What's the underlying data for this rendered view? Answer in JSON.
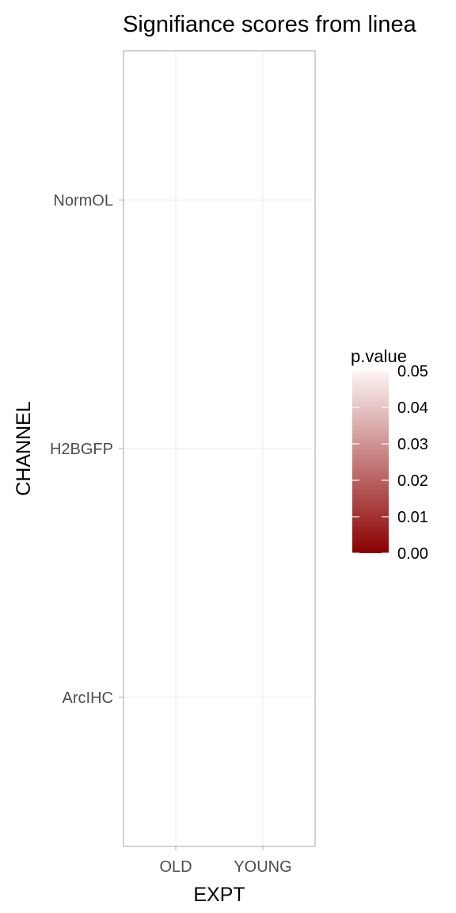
{
  "chart_data": {
    "type": "heatmap",
    "title": "Signifiance scores from linea",
    "xlabel": "EXPT",
    "ylabel": "CHANNEL",
    "x_categories": [
      "OLD",
      "YOUNG"
    ],
    "y_categories": [
      "NormOL",
      "H2BGFP",
      "ArcIHC"
    ],
    "cells": [],
    "grid": true,
    "legend": {
      "title": "p.value",
      "placement": "right",
      "range": [
        0.0,
        0.05
      ],
      "ticks": [
        "0.05",
        "0.04",
        "0.03",
        "0.02",
        "0.01",
        "0.00"
      ],
      "tick_values": [
        0.05,
        0.04,
        0.03,
        0.02,
        0.01,
        0.0
      ],
      "color_low": "#8b0000",
      "color_high": "#fdf5f5"
    }
  }
}
